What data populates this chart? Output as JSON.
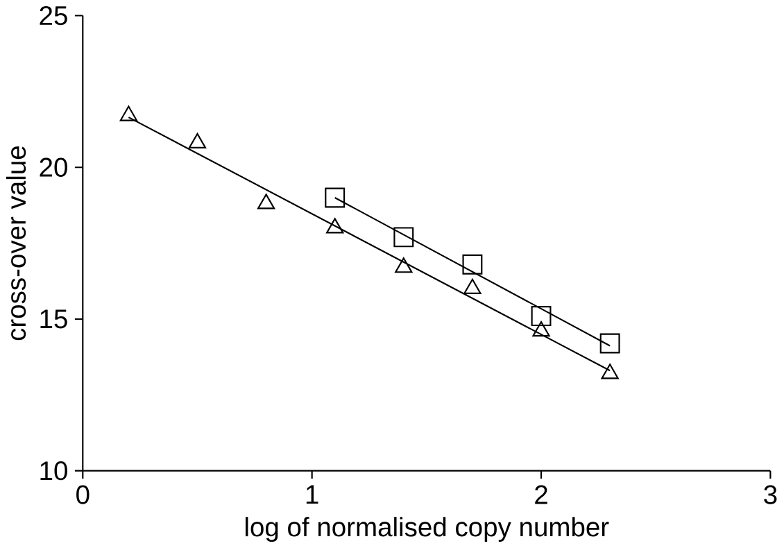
{
  "chart_data": {
    "type": "scatter",
    "xlabel": "log of normalised copy number",
    "ylabel": "cross-over value",
    "xlim": [
      0,
      3
    ],
    "ylim": [
      10,
      25
    ],
    "xticks": [
      0,
      1,
      2,
      3
    ],
    "yticks": [
      10,
      15,
      20,
      25
    ],
    "grid": false,
    "series": [
      {
        "marker": "triangle",
        "color": "#000000",
        "x": [
          0.2,
          0.5,
          0.8,
          1.1,
          1.4,
          1.7,
          2.0,
          2.3
        ],
        "values": [
          21.7,
          20.8,
          18.8,
          18.0,
          16.7,
          16.0,
          14.6,
          13.2
        ]
      },
      {
        "marker": "square",
        "color": "#000000",
        "x": [
          1.1,
          1.4,
          1.7,
          2.0,
          2.3
        ],
        "values": [
          19.0,
          17.7,
          16.8,
          15.1,
          14.2
        ]
      },
      {
        "type": "line",
        "marker": "none",
        "line_style": "solid",
        "color": "#000000",
        "x": [
          0.2,
          2.3
        ],
        "values": [
          21.65,
          13.3
        ]
      },
      {
        "type": "line",
        "marker": "none",
        "line_style": "solid",
        "color": "#000000",
        "x": [
          1.1,
          2.3
        ],
        "values": [
          19.0,
          14.12
        ]
      }
    ]
  }
}
